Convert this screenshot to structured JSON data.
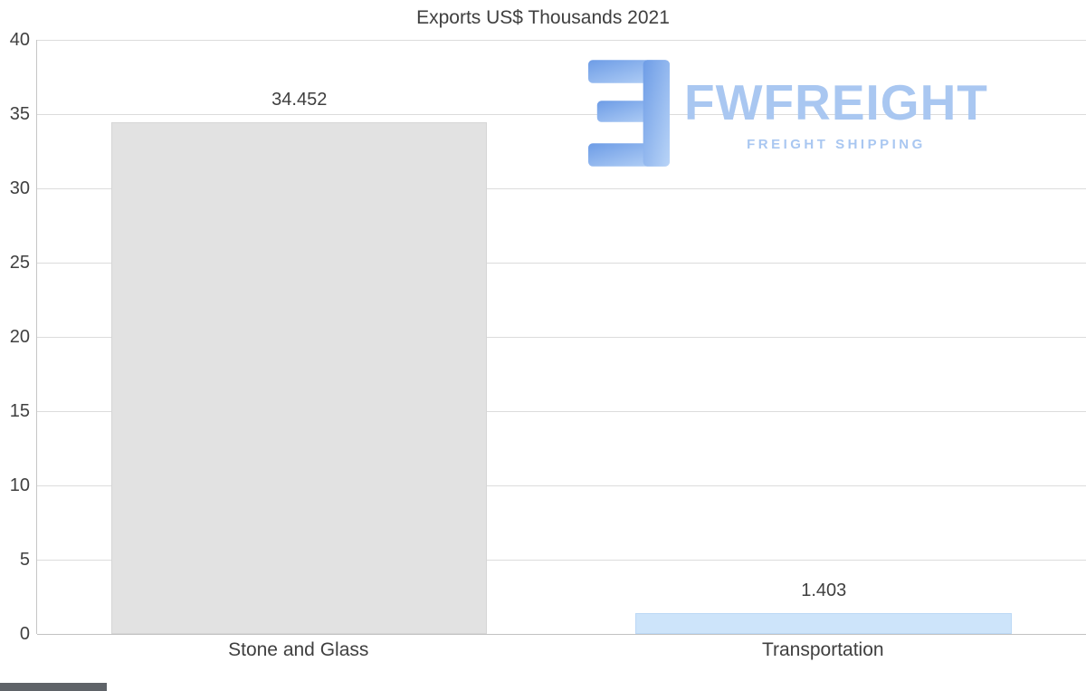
{
  "logo": {
    "brand": "FWFREIGHT",
    "tagline": "FREIGHT SHIPPING",
    "text_color": "#a9c7f1",
    "icon_color_start": "#6d9ce6",
    "icon_color_end": "#b9d4f7"
  },
  "chart_data": {
    "type": "bar",
    "title": "Exports US$ Thousands 2021",
    "categories": [
      "Stone and Glass",
      "Transportation"
    ],
    "values": [
      34.452,
      1.403
    ],
    "value_labels": [
      "34.452",
      "1.403"
    ],
    "bar_colors": [
      "#e2e2e2",
      "#cde4fa"
    ],
    "bar_borders": [
      "#d6d6d6",
      "#bcd8f5"
    ],
    "xlabel": "",
    "ylabel": "",
    "ylim": [
      0,
      40
    ],
    "yticks": [
      0,
      5,
      10,
      15,
      20,
      25,
      30,
      35,
      40
    ],
    "grid": "horizontal",
    "legend": "none"
  }
}
